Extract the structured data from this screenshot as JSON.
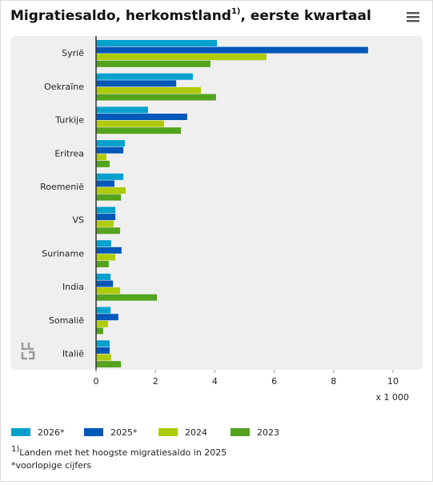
{
  "chart_data": {
    "type": "bar",
    "orientation": "horizontal",
    "title": "Migratiesaldo, herkomstland",
    "title_sup": "1)",
    "title_rest": ", eerste kwartaal",
    "categories": [
      "Syrië",
      "Oekraïne",
      "Turkije",
      "Eritrea",
      "Roemenië",
      "VS",
      "Suriname",
      "India",
      "Somalië",
      "Italië"
    ],
    "series": [
      {
        "name": "2026*",
        "color": "#00a1cd",
        "values": [
          4.07,
          3.26,
          1.75,
          0.97,
          0.92,
          0.65,
          0.51,
          0.49,
          0.49,
          0.46
        ]
      },
      {
        "name": "2025*",
        "color": "#0058b8",
        "values": [
          9.16,
          2.7,
          3.07,
          0.92,
          0.62,
          0.65,
          0.86,
          0.57,
          0.75,
          0.46
        ]
      },
      {
        "name": "2024",
        "color": "#afcb05",
        "values": [
          5.74,
          3.53,
          2.29,
          0.35,
          1.0,
          0.59,
          0.65,
          0.81,
          0.4,
          0.51
        ]
      },
      {
        "name": "2023",
        "color": "#53a31d",
        "values": [
          3.85,
          4.04,
          2.86,
          0.46,
          0.84,
          0.81,
          0.43,
          2.05,
          0.24,
          0.84
        ]
      }
    ],
    "xlim": [
      0,
      10
    ],
    "xticks": [
      0,
      2,
      4,
      6,
      8,
      10
    ],
    "x_unit": "x 1 000",
    "footnote_sup": "1)",
    "footnote": "Landen met het hoogste migratiesaldo in 2025",
    "footnote2": "*voorlopige cijfers"
  }
}
